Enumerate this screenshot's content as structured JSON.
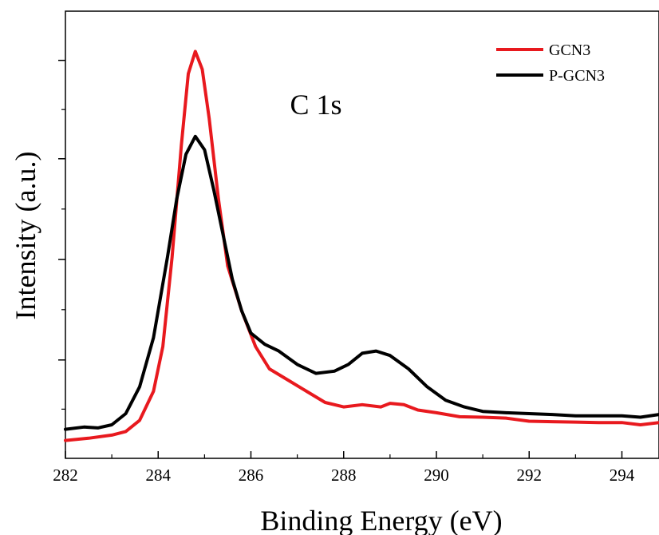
{
  "chart_data": {
    "type": "line",
    "title": "",
    "xlabel": "Binding Energy (eV)",
    "ylabel": "Intensity (a.u.)",
    "xlim": [
      282,
      294.8
    ],
    "ylim": [
      0,
      100
    ],
    "x_ticks": [
      282,
      284,
      286,
      288,
      290,
      292,
      294
    ],
    "y_tick_labels": "none",
    "grid": false,
    "legend_position": "top-right",
    "annotation": "C 1s",
    "series": [
      {
        "name": "GCN3",
        "color": "#e8191e",
        "points": [
          [
            282.0,
            4.0
          ],
          [
            282.5,
            4.5
          ],
          [
            283.0,
            5.2
          ],
          [
            283.3,
            6.0
          ],
          [
            283.6,
            8.5
          ],
          [
            283.9,
            15.0
          ],
          [
            284.1,
            25.0
          ],
          [
            284.3,
            45.0
          ],
          [
            284.5,
            70.0
          ],
          [
            284.65,
            86.0
          ],
          [
            284.8,
            91.0
          ],
          [
            284.95,
            87.0
          ],
          [
            285.1,
            76.0
          ],
          [
            285.3,
            58.0
          ],
          [
            285.5,
            43.0
          ],
          [
            285.8,
            33.0
          ],
          [
            286.1,
            25.0
          ],
          [
            286.4,
            20.0
          ],
          [
            286.8,
            17.5
          ],
          [
            287.2,
            15.0
          ],
          [
            287.6,
            12.5
          ],
          [
            288.0,
            11.5
          ],
          [
            288.4,
            12.0
          ],
          [
            288.8,
            11.5
          ],
          [
            289.0,
            12.3
          ],
          [
            289.3,
            12.0
          ],
          [
            289.6,
            10.8
          ],
          [
            290.0,
            10.2
          ],
          [
            290.5,
            9.3
          ],
          [
            291.0,
            9.2
          ],
          [
            291.5,
            9.0
          ],
          [
            292.0,
            8.3
          ],
          [
            292.5,
            8.2
          ],
          [
            293.0,
            8.1
          ],
          [
            293.5,
            8.0
          ],
          [
            294.0,
            8.0
          ],
          [
            294.4,
            7.5
          ],
          [
            294.8,
            8.0
          ]
        ]
      },
      {
        "name": "P-GCN3",
        "color": "#000000",
        "points": [
          [
            282.0,
            6.5
          ],
          [
            282.4,
            7.0
          ],
          [
            282.7,
            6.8
          ],
          [
            283.0,
            7.5
          ],
          [
            283.3,
            10.0
          ],
          [
            283.6,
            16.0
          ],
          [
            283.9,
            27.0
          ],
          [
            284.2,
            45.0
          ],
          [
            284.4,
            58.0
          ],
          [
            284.6,
            68.0
          ],
          [
            284.8,
            72.0
          ],
          [
            285.0,
            69.0
          ],
          [
            285.2,
            60.0
          ],
          [
            285.4,
            50.0
          ],
          [
            285.6,
            40.0
          ],
          [
            285.8,
            33.0
          ],
          [
            286.0,
            28.0
          ],
          [
            286.3,
            25.5
          ],
          [
            286.6,
            24.0
          ],
          [
            287.0,
            21.0
          ],
          [
            287.4,
            19.0
          ],
          [
            287.8,
            19.5
          ],
          [
            288.1,
            21.0
          ],
          [
            288.4,
            23.5
          ],
          [
            288.7,
            24.0
          ],
          [
            289.0,
            23.0
          ],
          [
            289.4,
            20.0
          ],
          [
            289.8,
            16.0
          ],
          [
            290.2,
            13.0
          ],
          [
            290.6,
            11.5
          ],
          [
            291.0,
            10.5
          ],
          [
            291.5,
            10.2
          ],
          [
            292.0,
            10.0
          ],
          [
            292.5,
            9.8
          ],
          [
            293.0,
            9.5
          ],
          [
            293.5,
            9.5
          ],
          [
            294.0,
            9.5
          ],
          [
            294.4,
            9.2
          ],
          [
            294.8,
            9.8
          ]
        ]
      }
    ]
  }
}
